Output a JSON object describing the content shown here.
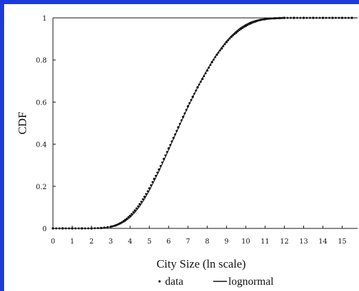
{
  "chart_data": {
    "type": "line",
    "xlabel": "City Size (ln scale)",
    "ylabel": "CDF",
    "xlim": [
      0,
      15.8
    ],
    "ylim": [
      0,
      1
    ],
    "x_ticks": [
      "0",
      "1",
      "2",
      "3",
      "4",
      "5",
      "6",
      "7",
      "8",
      "9",
      "10",
      "11",
      "12",
      "13",
      "14",
      "15"
    ],
    "y_ticks": [
      "0",
      "0.2",
      "0.4",
      "0.6",
      "0.8",
      "1"
    ],
    "grid": false,
    "legend": {
      "placement": "bottom",
      "items": [
        {
          "symbol": "dot",
          "label": "data"
        },
        {
          "symbol": "line",
          "label": "lognormal"
        }
      ]
    },
    "series": [
      {
        "name": "data",
        "style": "dots",
        "x": [
          0,
          0.5,
          1,
          1.5,
          2,
          2.5,
          3,
          3.25,
          3.5,
          3.75,
          4,
          4.25,
          4.5,
          4.75,
          5,
          5.25,
          5.5,
          5.75,
          6,
          6.25,
          6.5,
          6.75,
          7,
          7.25,
          7.5,
          7.75,
          8,
          8.25,
          8.5,
          8.75,
          9,
          9.25,
          9.5,
          9.75,
          10,
          10.25,
          10.5,
          10.75,
          11,
          11.25,
          11.5,
          11.75,
          12,
          12.5,
          13,
          13.5,
          14,
          14.5,
          15,
          15.5
        ],
        "y": [
          0,
          0,
          0,
          0,
          0,
          0.002,
          0.008,
          0.014,
          0.025,
          0.04,
          0.06,
          0.085,
          0.115,
          0.15,
          0.19,
          0.235,
          0.28,
          0.33,
          0.38,
          0.43,
          0.48,
          0.53,
          0.58,
          0.625,
          0.67,
          0.71,
          0.75,
          0.79,
          0.825,
          0.855,
          0.885,
          0.91,
          0.93,
          0.948,
          0.962,
          0.974,
          0.983,
          0.99,
          0.994,
          0.997,
          0.998,
          0.999,
          1,
          1,
          1,
          1,
          1,
          1,
          1,
          1
        ]
      },
      {
        "name": "lognormal",
        "style": "line",
        "x": [
          0,
          0.5,
          1,
          1.5,
          2,
          2.5,
          3,
          3.25,
          3.5,
          3.75,
          4,
          4.25,
          4.5,
          4.75,
          5,
          5.25,
          5.5,
          5.75,
          6,
          6.25,
          6.5,
          6.75,
          7,
          7.25,
          7.5,
          7.75,
          8,
          8.25,
          8.5,
          8.75,
          9,
          9.25,
          9.5,
          9.75,
          10,
          10.25,
          10.5,
          10.75,
          11,
          11.25,
          11.5,
          11.75,
          12,
          12.5,
          13,
          13.5,
          14,
          14.5,
          15,
          15.8
        ],
        "y": [
          0,
          0,
          0,
          0,
          0,
          0.002,
          0.007,
          0.012,
          0.021,
          0.034,
          0.052,
          0.076,
          0.105,
          0.14,
          0.18,
          0.225,
          0.272,
          0.322,
          0.373,
          0.425,
          0.476,
          0.527,
          0.577,
          0.624,
          0.67,
          0.713,
          0.754,
          0.792,
          0.828,
          0.86,
          0.89,
          0.915,
          0.937,
          0.955,
          0.969,
          0.98,
          0.988,
          0.993,
          0.996,
          0.998,
          0.999,
          1,
          1,
          1,
          1,
          1,
          1,
          1,
          1,
          1
        ]
      }
    ]
  }
}
